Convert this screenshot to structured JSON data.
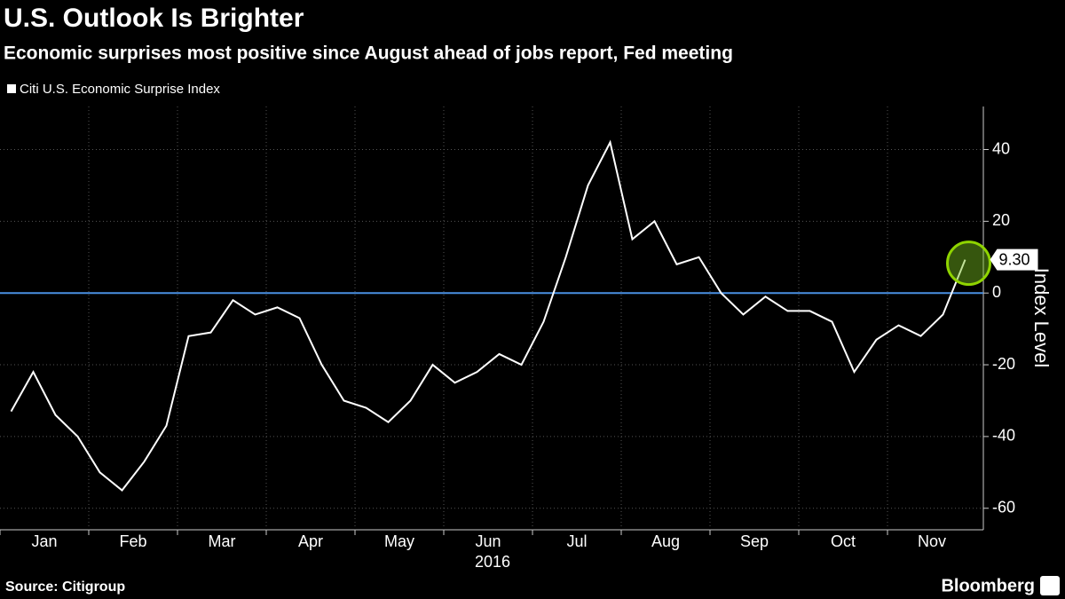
{
  "chart_data": {
    "type": "line",
    "title": "U.S. Outlook Is Brighter",
    "subtitle": "Economic surprises most positive since August ahead of jobs report, Fed meeting",
    "ylabel": "Index Level",
    "xlabel": "2016",
    "source": "Source: Citigroup",
    "brand": "Bloomberg",
    "categories": [
      null,
      "Jan",
      null,
      null,
      null,
      "Feb",
      null,
      null,
      null,
      "Mar",
      null,
      null,
      null,
      "Apr",
      null,
      null,
      null,
      "May",
      null,
      null,
      null,
      "Jun",
      null,
      null,
      null,
      "Jul",
      null,
      null,
      null,
      "Aug",
      null,
      null,
      null,
      "Sep",
      null,
      null,
      null,
      "Oct",
      null,
      null,
      null,
      "Nov",
      null,
      null
    ],
    "series": [
      {
        "name": "Citi U.S. Economic Surprise Index",
        "color": "#ffffff",
        "values": [
          -33,
          -22,
          -34,
          -40,
          -50,
          -55,
          -47,
          -37,
          -12,
          -11,
          -2,
          -6,
          -4,
          -7,
          -20,
          -30,
          -32,
          -36,
          -30,
          -20,
          -25,
          -22,
          -17,
          -20,
          -8,
          10,
          30,
          42,
          15,
          20,
          8,
          10,
          0,
          -6,
          -1,
          -5,
          -5,
          -8,
          -22,
          -13,
          -9,
          -12,
          -6,
          9.3
        ],
        "value_labels": [
          null,
          null,
          null,
          null,
          null,
          null,
          null,
          null,
          null,
          null,
          null,
          null,
          null,
          null,
          null,
          null,
          null,
          null,
          null,
          null,
          null,
          null,
          null,
          null,
          null,
          null,
          null,
          null,
          null,
          null,
          null,
          null,
          null,
          null,
          null,
          null,
          null,
          null,
          null,
          null,
          null,
          null,
          null,
          "9.30"
        ]
      }
    ],
    "reference_line": {
      "value": 0,
      "color": "#4a90e2"
    },
    "ylim": [
      -66,
      52
    ],
    "yticks": [
      -60,
      -40,
      -20,
      0,
      20,
      40
    ],
    "grid": true
  }
}
